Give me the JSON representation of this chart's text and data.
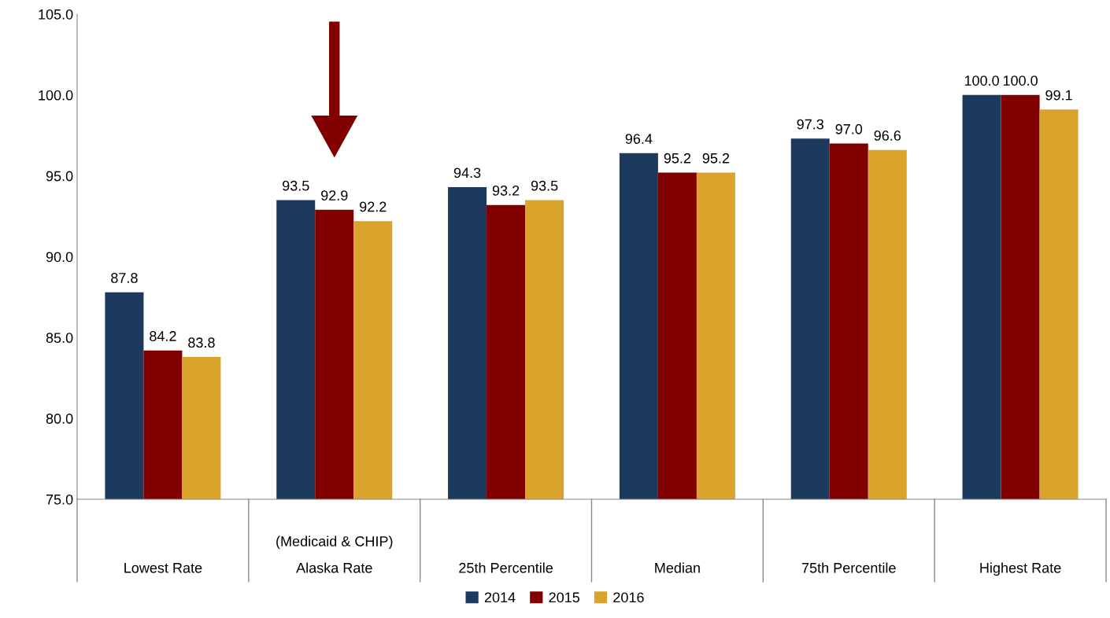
{
  "chart_data": {
    "type": "bar",
    "categories": [
      "Lowest Rate",
      "(Medicaid & CHIP)\nAlaska Rate",
      "25th Percentile",
      "Median",
      "75th Percentile",
      "Highest Rate"
    ],
    "series": [
      {
        "name": "2014",
        "color": "#1b3a5e",
        "values": [
          87.8,
          93.5,
          94.3,
          96.4,
          97.3,
          100.0
        ],
        "value_labels": [
          "87.8",
          "93.5",
          "94.3",
          "96.4",
          "97.3",
          "100.0"
        ]
      },
      {
        "name": "2015",
        "color": "#800000",
        "values": [
          84.2,
          92.9,
          93.2,
          95.2,
          97.0,
          100.0
        ],
        "value_labels": [
          "84.2",
          "92.9",
          "93.2",
          "95.2",
          "97.0",
          "100.0"
        ]
      },
      {
        "name": "2016",
        "color": "#daa32c",
        "values": [
          83.8,
          92.2,
          93.5,
          95.2,
          96.6,
          99.1
        ],
        "value_labels": [
          "83.8",
          "92.2",
          "93.5",
          "95.2",
          "96.6",
          "99.1"
        ]
      }
    ],
    "ylim": [
      75,
      105
    ],
    "yticks": [
      {
        "value": 75,
        "label": "75.0"
      },
      {
        "value": 80,
        "label": "80.0"
      },
      {
        "value": 85,
        "label": "85.0"
      },
      {
        "value": 90,
        "label": "90.0"
      },
      {
        "value": 95,
        "label": "95.0"
      },
      {
        "value": 100,
        "label": "100.0"
      },
      {
        "value": 105,
        "label": "105.0"
      }
    ],
    "legend": "bottom"
  }
}
